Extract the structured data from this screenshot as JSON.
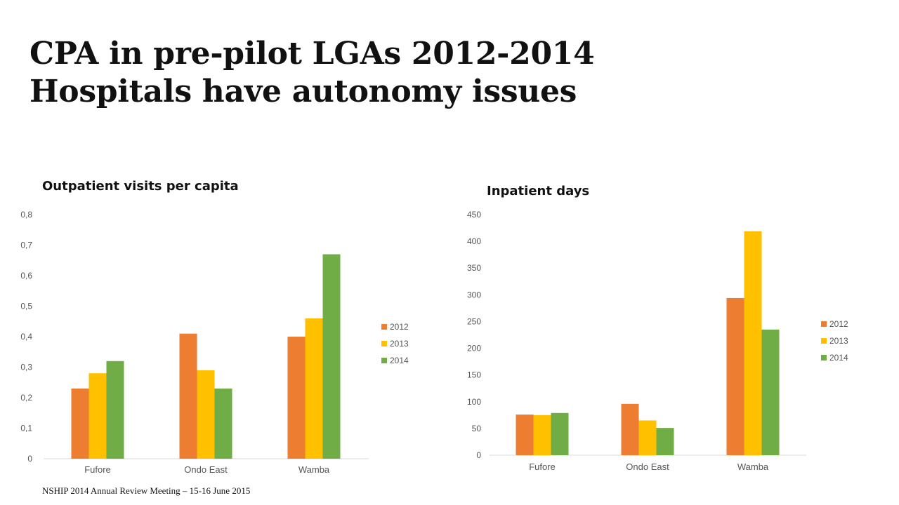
{
  "slide": {
    "title_line1": "CPA in pre-pilot LGAs 2012-2014",
    "title_line2": "Hospitals have autonomy issues",
    "footer": "NSHIP 2014 Annual Review Meeting – 15-16 June 2015"
  },
  "colors": {
    "2012": "#ED7D31",
    "2013": "#FFC000",
    "2014": "#70AD47",
    "axis": "#D9D9D9"
  },
  "chart_data": [
    {
      "type": "bar",
      "title": "Outpatient visits per capita",
      "categories": [
        "Fufore",
        "Ondo East",
        "Wamba"
      ],
      "series": [
        {
          "name": "2012",
          "values": [
            0.23,
            0.41,
            0.4
          ]
        },
        {
          "name": "2013",
          "values": [
            0.28,
            0.29,
            0.46
          ]
        },
        {
          "name": "2014",
          "values": [
            0.32,
            0.23,
            0.67
          ]
        }
      ],
      "yticks": [
        "0",
        "0,1",
        "0,2",
        "0,3",
        "0,4",
        "0,5",
        "0,6",
        "0,7",
        "0,8"
      ],
      "ylim": [
        0,
        0.8
      ],
      "grid": false,
      "legend": "right"
    },
    {
      "type": "bar",
      "title": "Inpatient days",
      "categories": [
        "Fufore",
        "Ondo East",
        "Wamba"
      ],
      "series": [
        {
          "name": "2012",
          "values": [
            76,
            96,
            294
          ]
        },
        {
          "name": "2013",
          "values": [
            75,
            65,
            419
          ]
        },
        {
          "name": "2014",
          "values": [
            79,
            51,
            235
          ]
        }
      ],
      "yticks": [
        "0",
        "50",
        "100",
        "150",
        "200",
        "250",
        "300",
        "350",
        "400",
        "450"
      ],
      "ylim": [
        0,
        450
      ],
      "grid": false,
      "legend": "right"
    }
  ]
}
